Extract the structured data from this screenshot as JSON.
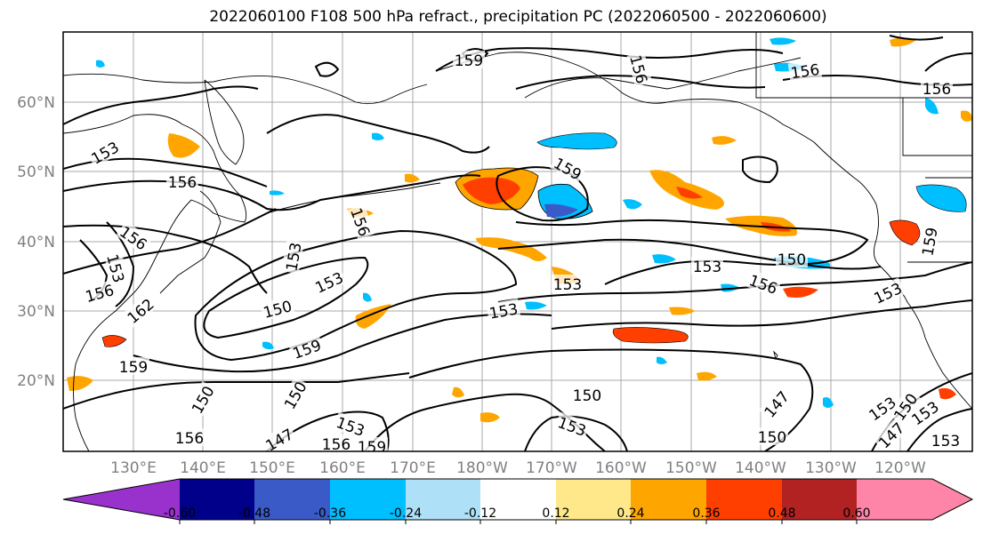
{
  "title": "2022060100 F108 500 hPa refract., precipitation PC (2022060500 - 2022060600)",
  "lat_labels": [
    "60°N",
    "50°N",
    "40°N",
    "30°N",
    "20°N"
  ],
  "lon_labels": [
    "130°E",
    "140°E",
    "150°E",
    "160°E",
    "170°E",
    "180°W",
    "170°W",
    "160°W",
    "150°W",
    "140°W",
    "130°W",
    "120°W"
  ],
  "colorbar": {
    "colors": [
      "#9932cc",
      "#00008b",
      "#3a5bc7",
      "#00bfff",
      "#aee0f8",
      "#ffffff",
      "#ffe88a",
      "#ffa500",
      "#ff3f00",
      "#b22222",
      "#ff85a8"
    ],
    "tick_labels": [
      "-0.60",
      "-0.48",
      "-0.36",
      "-0.24",
      "-0.12",
      "0.12",
      "0.24",
      "0.36",
      "0.48",
      "0.60"
    ]
  },
  "contour_labels": [
    {
      "text": "159"
    },
    {
      "text": "156"
    },
    {
      "text": "156"
    },
    {
      "text": "156"
    },
    {
      "text": "153"
    },
    {
      "text": "156"
    },
    {
      "text": "156"
    },
    {
      "text": "153"
    },
    {
      "text": "156"
    },
    {
      "text": "162"
    },
    {
      "text": "159"
    },
    {
      "text": "153"
    },
    {
      "text": "150"
    },
    {
      "text": "153"
    },
    {
      "text": "159"
    },
    {
      "text": "156"
    },
    {
      "text": "159"
    },
    {
      "text": "153"
    },
    {
      "text": "153"
    },
    {
      "text": "153"
    },
    {
      "text": "150"
    },
    {
      "text": "156"
    },
    {
      "text": "153"
    },
    {
      "text": "159"
    },
    {
      "text": "150"
    },
    {
      "text": "150"
    },
    {
      "text": "153"
    },
    {
      "text": "159"
    },
    {
      "text": "147"
    },
    {
      "text": "156"
    },
    {
      "text": "150"
    },
    {
      "text": "153"
    },
    {
      "text": "147"
    },
    {
      "text": "150"
    },
    {
      "text": "150"
    },
    {
      "text": "153"
    },
    {
      "text": "153"
    },
    {
      "text": "156"
    },
    {
      "text": "153"
    },
    {
      "text": "147"
    }
  ]
}
